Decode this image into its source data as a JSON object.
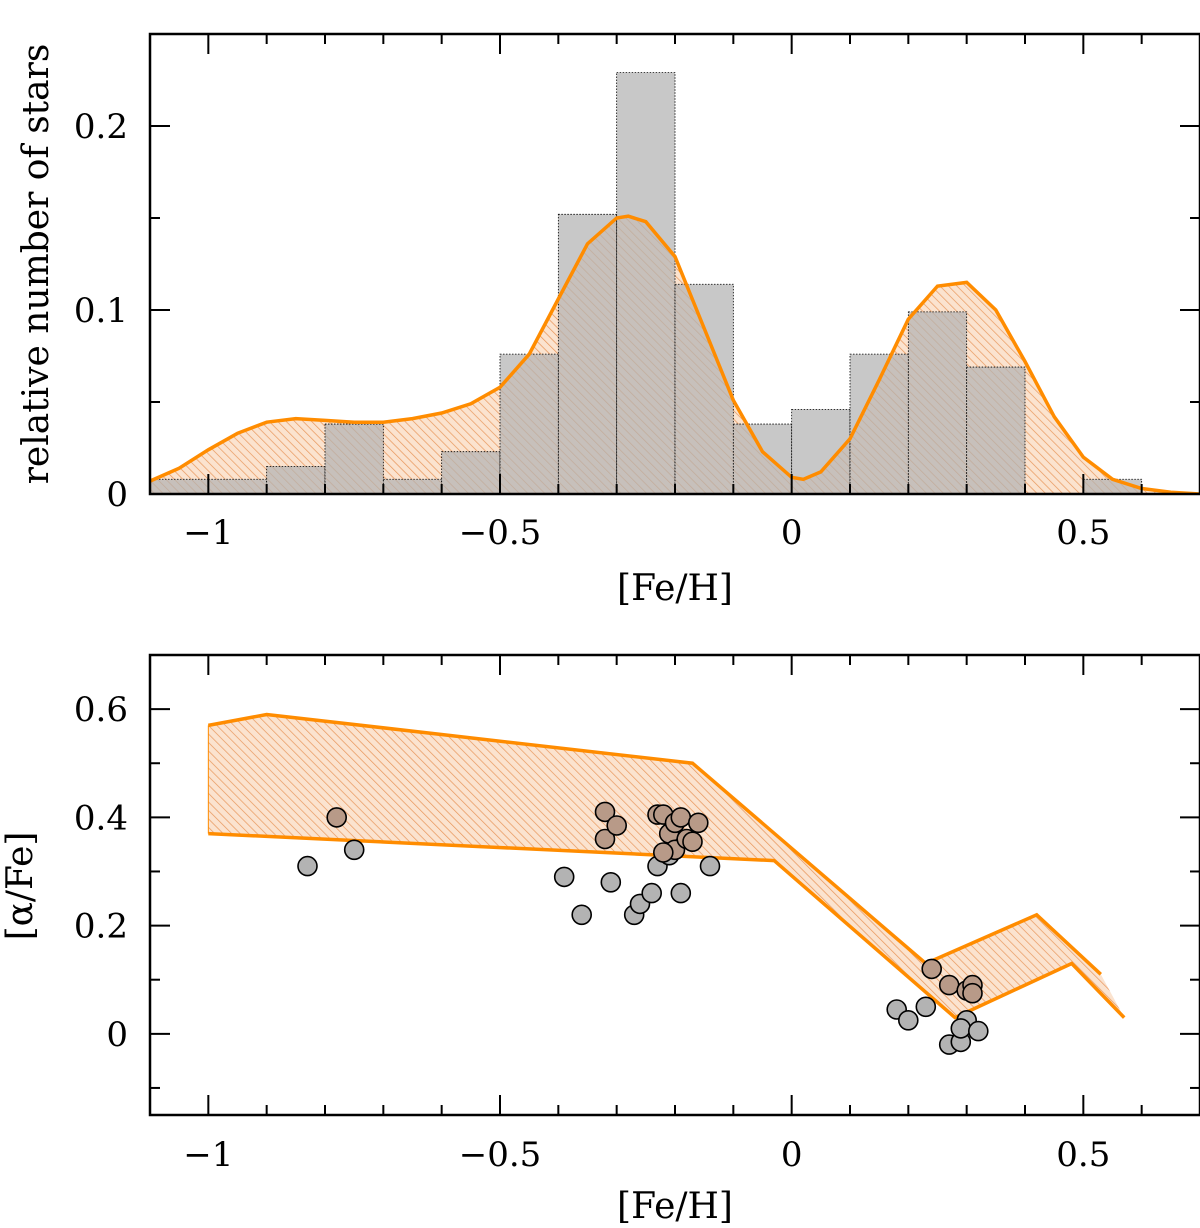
{
  "colors": {
    "histogram_fill": "#b3b3b3",
    "model_orange": "#ff8c00",
    "hatch_fill": "#f2c9a6",
    "overlap_fill": "#b89a88",
    "point_gray": "#b3b3b3",
    "point_brown": "#b89a88",
    "axis": "#000000"
  },
  "chart_data": [
    {
      "type": "bar",
      "subtype": "histogram-with-model-curve",
      "xlabel": "[Fe/H]",
      "ylabel": "relative number of stars",
      "xlim": [
        -1.1,
        0.7
      ],
      "ylim": [
        0,
        0.25
      ],
      "xticks": [
        -1,
        -0.5,
        0,
        0.5
      ],
      "xtick_labels": [
        "−1",
        "−0.5",
        "0",
        "0.5"
      ],
      "yticks": [
        0,
        0.1,
        0.2
      ],
      "ytick_labels": [
        "0",
        "0.1",
        "0.2"
      ],
      "bins": [
        {
          "x0": -1.1,
          "x1": -1.0,
          "value": 0.008
        },
        {
          "x0": -1.0,
          "x1": -0.9,
          "value": 0.008
        },
        {
          "x0": -0.9,
          "x1": -0.8,
          "value": 0.015
        },
        {
          "x0": -0.8,
          "x1": -0.7,
          "value": 0.038
        },
        {
          "x0": -0.7,
          "x1": -0.6,
          "value": 0.008
        },
        {
          "x0": -0.6,
          "x1": -0.5,
          "value": 0.023
        },
        {
          "x0": -0.5,
          "x1": -0.4,
          "value": 0.076
        },
        {
          "x0": -0.4,
          "x1": -0.3,
          "value": 0.152
        },
        {
          "x0": -0.3,
          "x1": -0.2,
          "value": 0.229
        },
        {
          "x0": -0.2,
          "x1": -0.1,
          "value": 0.114
        },
        {
          "x0": -0.1,
          "x1": 0.0,
          "value": 0.038
        },
        {
          "x0": 0.0,
          "x1": 0.1,
          "value": 0.046
        },
        {
          "x0": 0.1,
          "x1": 0.2,
          "value": 0.076
        },
        {
          "x0": 0.2,
          "x1": 0.3,
          "value": 0.099
        },
        {
          "x0": 0.3,
          "x1": 0.4,
          "value": 0.069
        },
        {
          "x0": 0.5,
          "x1": 0.6,
          "value": 0.008
        }
      ],
      "model_curve": {
        "x": [
          -1.1,
          -1.05,
          -1.0,
          -0.95,
          -0.9,
          -0.85,
          -0.8,
          -0.75,
          -0.7,
          -0.65,
          -0.6,
          -0.55,
          -0.5,
          -0.45,
          -0.4,
          -0.35,
          -0.3,
          -0.28,
          -0.25,
          -0.2,
          -0.15,
          -0.1,
          -0.05,
          0.0,
          0.02,
          0.05,
          0.1,
          0.15,
          0.2,
          0.25,
          0.3,
          0.35,
          0.4,
          0.45,
          0.5,
          0.55,
          0.6,
          0.65,
          0.7
        ],
        "y": [
          0.007,
          0.014,
          0.024,
          0.033,
          0.039,
          0.041,
          0.04,
          0.039,
          0.039,
          0.041,
          0.044,
          0.049,
          0.058,
          0.076,
          0.106,
          0.136,
          0.15,
          0.151,
          0.148,
          0.129,
          0.09,
          0.051,
          0.023,
          0.009,
          0.008,
          0.012,
          0.03,
          0.062,
          0.095,
          0.113,
          0.115,
          0.1,
          0.072,
          0.042,
          0.02,
          0.008,
          0.003,
          0.001,
          0.0
        ]
      }
    },
    {
      "type": "scatter",
      "xlabel": "[Fe/H]",
      "ylabel": "[α/Fe]",
      "xlim": [
        -1.1,
        0.7
      ],
      "ylim": [
        -0.15,
        0.7
      ],
      "xticks": [
        -1,
        -0.5,
        0,
        0.5
      ],
      "xtick_labels": [
        "−1",
        "−0.5",
        "0",
        "0.5"
      ],
      "yticks": [
        0,
        0.2,
        0.4,
        0.6
      ],
      "ytick_labels": [
        "0",
        "0.2",
        "0.4",
        "0.6"
      ],
      "band": {
        "upper": {
          "x": [
            -1.0,
            -0.9,
            -0.17,
            0.23,
            0.42,
            0.53
          ],
          "y": [
            0.57,
            0.59,
            0.5,
            0.13,
            0.22,
            0.11
          ]
        },
        "lower": {
          "x": [
            -1.0,
            -0.03,
            0.28,
            0.48,
            0.57
          ],
          "y": [
            0.37,
            0.32,
            0.03,
            0.13,
            0.03
          ]
        }
      },
      "series": [
        {
          "color_key": "point_gray",
          "x": [
            -0.83,
            -0.75,
            -0.39,
            -0.36,
            -0.31,
            -0.27,
            -0.26,
            -0.24,
            -0.23,
            -0.21,
            -0.19,
            -0.14,
            0.18,
            0.2,
            0.23,
            0.27,
            0.29,
            0.3,
            0.29,
            0.32
          ],
          "y": [
            0.31,
            0.34,
            0.29,
            0.22,
            0.28,
            0.22,
            0.24,
            0.26,
            0.31,
            0.33,
            0.26,
            0.31,
            0.045,
            0.025,
            0.05,
            -0.02,
            -0.015,
            0.025,
            0.01,
            0.005
          ]
        },
        {
          "color_key": "point_brown",
          "x": [
            -0.78,
            -0.32,
            -0.32,
            -0.3,
            -0.23,
            -0.22,
            -0.21,
            -0.2,
            -0.2,
            -0.19,
            -0.18,
            -0.17,
            -0.16,
            -0.22,
            0.24,
            0.27,
            0.3,
            0.31,
            0.31
          ],
          "y": [
            0.4,
            0.41,
            0.36,
            0.385,
            0.405,
            0.405,
            0.37,
            0.34,
            0.39,
            0.4,
            0.36,
            0.355,
            0.39,
            0.335,
            0.12,
            0.09,
            0.08,
            0.09,
            0.075
          ]
        }
      ]
    }
  ]
}
